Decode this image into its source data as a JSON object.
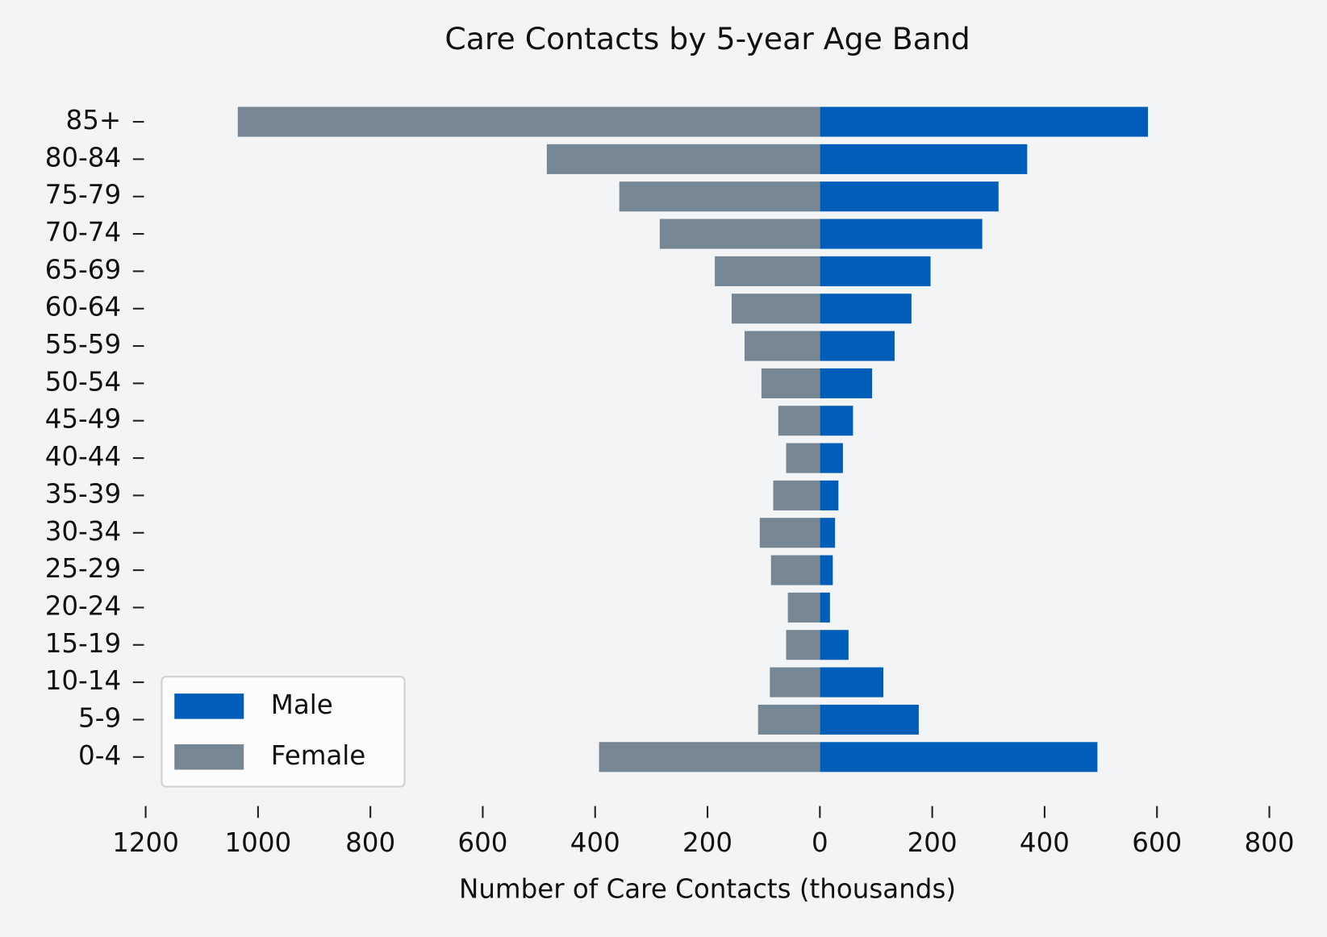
{
  "chart_data": {
    "type": "bar",
    "title": "Care Contacts by 5-year Age Band",
    "xlabel": "Number of Care Contacts (thousands)",
    "categories": [
      "0-4",
      "5-9",
      "10-14",
      "15-19",
      "20-24",
      "25-29",
      "30-34",
      "35-39",
      "40-44",
      "45-49",
      "50-54",
      "55-59",
      "60-64",
      "65-69",
      "70-74",
      "75-79",
      "80-84",
      "85+"
    ],
    "series": [
      {
        "name": "Male",
        "color": "#005eb8",
        "values": [
          494,
          176,
          113,
          51,
          18,
          23,
          27,
          33,
          41,
          59,
          93,
          133,
          163,
          197,
          289,
          318,
          369,
          584
        ]
      },
      {
        "name": "Female",
        "color": "#768692",
        "values": [
          -393,
          -110,
          -89,
          -60,
          -57,
          -87,
          -107,
          -83,
          -60,
          -74,
          -104,
          -134,
          -157,
          -187,
          -285,
          -357,
          -486,
          -1036
        ]
      }
    ],
    "xlim": [
      -1200,
      800
    ],
    "xticks": [
      {
        "value": -1200,
        "label": "1200"
      },
      {
        "value": -1000,
        "label": "1000"
      },
      {
        "value": -800,
        "label": "800"
      },
      {
        "value": -600,
        "label": "600"
      },
      {
        "value": -400,
        "label": "400"
      },
      {
        "value": -200,
        "label": "200"
      },
      0,
      200,
      400,
      600,
      800
    ],
    "legend": "lower left"
  }
}
